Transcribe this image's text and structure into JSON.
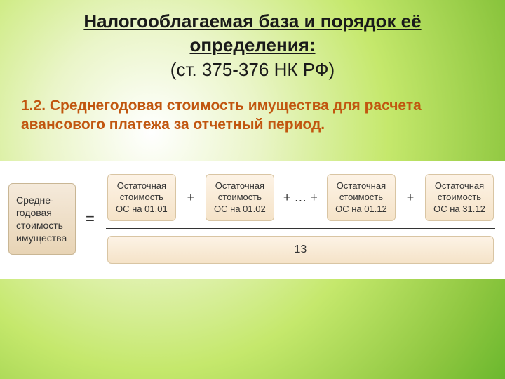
{
  "colors": {
    "title": "#1a1a1a",
    "section": "#c1560f",
    "box_text": "#333333",
    "left_box_bg_top": "#f5eadb",
    "left_box_bg_bottom": "#e8d4b5",
    "term_box_bg_top": "#fdf3e6",
    "term_box_bg_bottom": "#f5e3c8",
    "box_border": "#d9c5a3",
    "formula_bg": "#ffffff"
  },
  "header": {
    "title_line1": "Налогооблагаемая база и порядок её",
    "title_line2": "определения:",
    "subtitle": "(ст. 375-376 НК РФ)"
  },
  "section": {
    "line1": "1.2. Среднегодовая стоимость имущества для расчета",
    "line2": "авансового платежа за отчетный период."
  },
  "formula": {
    "left_label": "Средне-годовая стоимость имущества",
    "equals": "=",
    "terms": [
      "Остаточная стоимость ОС на 01.01",
      "Остаточная стоимость ОС на 01.02",
      "Остаточная стоимость ОС на 01.12",
      "Остаточная стоимость ОС на 31.12"
    ],
    "ops": [
      "+",
      "+ … +",
      "+"
    ],
    "denominator": "13"
  }
}
